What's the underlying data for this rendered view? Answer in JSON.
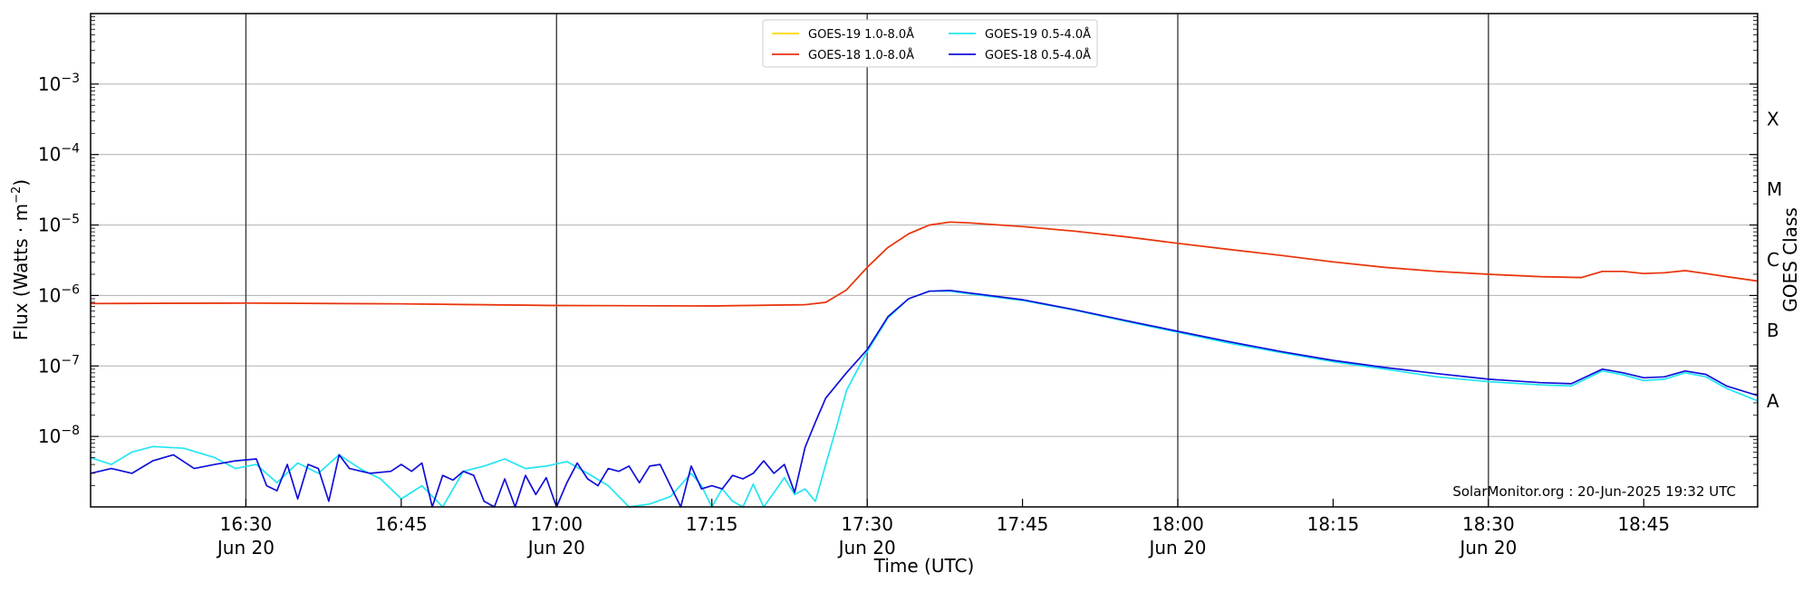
{
  "chart_data": {
    "type": "line",
    "xlabel": "Time (UTC)",
    "ylabel": "Flux (Watts · m",
    "ylabel_sup": "−2",
    "ylabel_close": ")",
    "right_label": "GOES Class",
    "y_scale": "log",
    "ylim": [
      1e-09,
      0.01
    ],
    "xlim": [
      "16:15",
      "18:56"
    ],
    "grid": "horizontal at decades, vertical at half hours",
    "legend_placement": "top-center",
    "y_ticks": [
      {
        "value": 1e-08,
        "base": "10",
        "exp": "−8"
      },
      {
        "value": 1e-07,
        "base": "10",
        "exp": "−7"
      },
      {
        "value": 1e-06,
        "base": "10",
        "exp": "−6"
      },
      {
        "value": 1e-05,
        "base": "10",
        "exp": "−5"
      },
      {
        "value": 0.0001,
        "base": "10",
        "exp": "−4"
      },
      {
        "value": 0.001,
        "base": "10",
        "exp": "−3"
      }
    ],
    "x_ticks": [
      {
        "time": "16:30",
        "label": "16:30",
        "date": "Jun 20"
      },
      {
        "time": "16:45",
        "label": "16:45",
        "date": ""
      },
      {
        "time": "17:00",
        "label": "17:00",
        "date": "Jun 20"
      },
      {
        "time": "17:15",
        "label": "17:15",
        "date": ""
      },
      {
        "time": "17:30",
        "label": "17:30",
        "date": "Jun 20"
      },
      {
        "time": "17:45",
        "label": "17:45",
        "date": ""
      },
      {
        "time": "18:00",
        "label": "18:00",
        "date": "Jun 20"
      },
      {
        "time": "18:15",
        "label": "18:15",
        "date": ""
      },
      {
        "time": "18:30",
        "label": "18:30",
        "date": "Jun 20"
      },
      {
        "time": "18:45",
        "label": "18:45",
        "date": ""
      }
    ],
    "goes_classes": [
      {
        "label": "X",
        "value": 0.00032
      },
      {
        "label": "M",
        "value": 3.2e-05
      },
      {
        "label": "C",
        "value": 3.2e-06
      },
      {
        "label": "B",
        "value": 3.2e-07
      },
      {
        "label": "A",
        "value": 3.2e-08
      }
    ],
    "watermark": "SolarMonitor.org : 20-Jun-2025 19:32 UTC",
    "series": [
      {
        "name": "GOES-19 1.0-8.0Å",
        "color": "#ffd700",
        "legend_order": 0,
        "draw_order": 1,
        "points": [
          [
            "16:15",
            7.7e-07
          ],
          [
            "16:30",
            7.8e-07
          ],
          [
            "16:45",
            7.6e-07
          ],
          [
            "17:00",
            7.2e-07
          ],
          [
            "17:15",
            7.1e-07
          ],
          [
            "17:24",
            7.4e-07
          ],
          [
            "17:26",
            8e-07
          ],
          [
            "17:28",
            1.2e-06
          ],
          [
            "17:30",
            2.5e-06
          ],
          [
            "17:32",
            4.8e-06
          ],
          [
            "17:34",
            7.5e-06
          ],
          [
            "17:36",
            1e-05
          ],
          [
            "17:38",
            1.1e-05
          ],
          [
            "17:40",
            1.07e-05
          ],
          [
            "17:45",
            9.5e-06
          ],
          [
            "17:50",
            8.2e-06
          ],
          [
            "17:55",
            6.8e-06
          ],
          [
            "18:00",
            5.5e-06
          ],
          [
            "18:05",
            4.5e-06
          ],
          [
            "18:10",
            3.7e-06
          ],
          [
            "18:15",
            3e-06
          ],
          [
            "18:20",
            2.5e-06
          ],
          [
            "18:25",
            2.2e-06
          ],
          [
            "18:30",
            2e-06
          ],
          [
            "18:35",
            1.85e-06
          ],
          [
            "18:39",
            1.8e-06
          ],
          [
            "18:41",
            2.2e-06
          ],
          [
            "18:43",
            2.2e-06
          ],
          [
            "18:45",
            2.05e-06
          ],
          [
            "18:47",
            2.1e-06
          ],
          [
            "18:49",
            2.25e-06
          ],
          [
            "18:51",
            2.05e-06
          ],
          [
            "18:53",
            1.85e-06
          ],
          [
            "18:56",
            1.6e-06
          ]
        ]
      },
      {
        "name": "GOES-18 1.0-8.0Å",
        "color": "#e8321a",
        "legend_order": 1,
        "draw_order": 3,
        "points": [
          [
            "16:15",
            7.7e-07
          ],
          [
            "16:30",
            7.8e-07
          ],
          [
            "16:45",
            7.6e-07
          ],
          [
            "17:00",
            7.2e-07
          ],
          [
            "17:15",
            7.1e-07
          ],
          [
            "17:24",
            7.4e-07
          ],
          [
            "17:26",
            8e-07
          ],
          [
            "17:28",
            1.2e-06
          ],
          [
            "17:30",
            2.5e-06
          ],
          [
            "17:32",
            4.8e-06
          ],
          [
            "17:34",
            7.5e-06
          ],
          [
            "17:36",
            1e-05
          ],
          [
            "17:38",
            1.1e-05
          ],
          [
            "17:40",
            1.07e-05
          ],
          [
            "17:45",
            9.5e-06
          ],
          [
            "17:50",
            8.2e-06
          ],
          [
            "17:55",
            6.8e-06
          ],
          [
            "18:00",
            5.5e-06
          ],
          [
            "18:05",
            4.5e-06
          ],
          [
            "18:10",
            3.7e-06
          ],
          [
            "18:15",
            3e-06
          ],
          [
            "18:20",
            2.5e-06
          ],
          [
            "18:25",
            2.2e-06
          ],
          [
            "18:30",
            2e-06
          ],
          [
            "18:35",
            1.85e-06
          ],
          [
            "18:39",
            1.8e-06
          ],
          [
            "18:41",
            2.2e-06
          ],
          [
            "18:43",
            2.2e-06
          ],
          [
            "18:45",
            2.05e-06
          ],
          [
            "18:47",
            2.1e-06
          ],
          [
            "18:49",
            2.25e-06
          ],
          [
            "18:51",
            2.05e-06
          ],
          [
            "18:53",
            1.85e-06
          ],
          [
            "18:56",
            1.6e-06
          ]
        ]
      },
      {
        "name": "GOES-19 0.5-4.0Å",
        "color": "#22e6f2",
        "legend_order": 2,
        "draw_order": 0,
        "points": [
          [
            "16:15",
            5e-09
          ],
          [
            "16:17",
            4e-09
          ],
          [
            "16:19",
            6e-09
          ],
          [
            "16:21",
            7.2e-09
          ],
          [
            "16:24",
            6.8e-09
          ],
          [
            "16:27",
            5e-09
          ],
          [
            "16:29",
            3.5e-09
          ],
          [
            "16:31",
            4e-09
          ],
          [
            "16:33",
            2.2e-09
          ],
          [
            "16:35",
            4.2e-09
          ],
          [
            "16:37",
            3e-09
          ],
          [
            "16:39",
            5.5e-09
          ],
          [
            "16:41",
            3.5e-09
          ],
          [
            "16:43",
            2.5e-09
          ],
          [
            "16:45",
            1.3e-09
          ],
          [
            "16:47",
            2e-09
          ],
          [
            "16:49",
            1e-09
          ],
          [
            "16:51",
            3.2e-09
          ],
          [
            "16:53",
            3.8e-09
          ],
          [
            "16:55",
            4.8e-09
          ],
          [
            "16:57",
            3.5e-09
          ],
          [
            "16:59",
            3.8e-09
          ],
          [
            "17:01",
            4.4e-09
          ],
          [
            "17:03",
            3e-09
          ],
          [
            "17:05",
            2e-09
          ],
          [
            "17:07",
            1e-09
          ],
          [
            "17:09",
            1.1e-09
          ],
          [
            "17:11",
            1.4e-09
          ],
          [
            "17:13",
            3e-09
          ],
          [
            "17:14",
            2e-09
          ],
          [
            "17:15",
            1e-09
          ],
          [
            "17:16",
            1.8e-09
          ],
          [
            "17:17",
            1.2e-09
          ],
          [
            "17:18",
            1e-09
          ],
          [
            "17:19",
            2.1e-09
          ],
          [
            "17:20",
            1e-09
          ],
          [
            "17:21",
            1.6e-09
          ],
          [
            "17:22",
            2.6e-09
          ],
          [
            "17:23",
            1.5e-09
          ],
          [
            "17:24",
            1.8e-09
          ],
          [
            "17:25",
            1.2e-09
          ],
          [
            "17:26",
            4e-09
          ],
          [
            "17:27",
            1.3e-08
          ],
          [
            "17:28",
            4.5e-08
          ],
          [
            "17:30",
            1.6e-07
          ],
          [
            "17:32",
            4.8e-07
          ],
          [
            "17:34",
            9e-07
          ],
          [
            "17:36",
            1.15e-06
          ],
          [
            "17:38",
            1.15e-06
          ],
          [
            "17:40",
            1.05e-06
          ],
          [
            "17:45",
            8.5e-07
          ],
          [
            "17:50",
            6.2e-07
          ],
          [
            "17:55",
            4.3e-07
          ],
          [
            "18:00",
            3e-07
          ],
          [
            "18:05",
            2.1e-07
          ],
          [
            "18:10",
            1.55e-07
          ],
          [
            "18:15",
            1.15e-07
          ],
          [
            "18:20",
            9e-08
          ],
          [
            "18:25",
            7e-08
          ],
          [
            "18:30",
            6e-08
          ],
          [
            "18:35",
            5.4e-08
          ],
          [
            "18:38",
            5.2e-08
          ],
          [
            "18:41",
            8.5e-08
          ],
          [
            "18:43",
            7.5e-08
          ],
          [
            "18:45",
            6.2e-08
          ],
          [
            "18:47",
            6.5e-08
          ],
          [
            "18:49",
            8e-08
          ],
          [
            "18:51",
            7e-08
          ],
          [
            "18:53",
            4.8e-08
          ],
          [
            "18:56",
            3.2e-08
          ]
        ]
      },
      {
        "name": "GOES-18 0.5-4.0Å",
        "color": "#1010d8",
        "legend_order": 3,
        "draw_order": 2,
        "points": [
          [
            "16:15",
            3e-09
          ],
          [
            "16:17",
            3.5e-09
          ],
          [
            "16:19",
            3e-09
          ],
          [
            "16:21",
            4.5e-09
          ],
          [
            "16:23",
            5.5e-09
          ],
          [
            "16:25",
            3.5e-09
          ],
          [
            "16:27",
            4e-09
          ],
          [
            "16:29",
            4.5e-09
          ],
          [
            "16:31",
            4.8e-09
          ],
          [
            "16:32",
            2e-09
          ],
          [
            "16:33",
            1.7e-09
          ],
          [
            "16:34",
            4e-09
          ],
          [
            "16:35",
            1.3e-09
          ],
          [
            "16:36",
            4e-09
          ],
          [
            "16:37",
            3.5e-09
          ],
          [
            "16:38",
            1.2e-09
          ],
          [
            "16:39",
            5.5e-09
          ],
          [
            "16:40",
            3.5e-09
          ],
          [
            "16:42",
            3e-09
          ],
          [
            "16:44",
            3.2e-09
          ],
          [
            "16:45",
            4e-09
          ],
          [
            "16:46",
            3.2e-09
          ],
          [
            "16:47",
            4.2e-09
          ],
          [
            "16:48",
            1e-09
          ],
          [
            "16:49",
            2.8e-09
          ],
          [
            "16:50",
            2.4e-09
          ],
          [
            "16:51",
            3.2e-09
          ],
          [
            "16:52",
            2.8e-09
          ],
          [
            "16:53",
            1.2e-09
          ],
          [
            "16:54",
            1e-09
          ],
          [
            "16:55",
            2.5e-09
          ],
          [
            "16:56",
            1e-09
          ],
          [
            "16:57",
            2.8e-09
          ],
          [
            "16:58",
            1.5e-09
          ],
          [
            "16:59",
            2.6e-09
          ],
          [
            "17:00",
            1e-09
          ],
          [
            "17:01",
            2.2e-09
          ],
          [
            "17:02",
            4.2e-09
          ],
          [
            "17:03",
            2.5e-09
          ],
          [
            "17:04",
            2e-09
          ],
          [
            "17:05",
            3.5e-09
          ],
          [
            "17:06",
            3.2e-09
          ],
          [
            "17:07",
            3.8e-09
          ],
          [
            "17:08",
            2.2e-09
          ],
          [
            "17:09",
            3.8e-09
          ],
          [
            "17:10",
            4e-09
          ],
          [
            "17:11",
            2e-09
          ],
          [
            "17:12",
            1e-09
          ],
          [
            "17:13",
            3.8e-09
          ],
          [
            "17:14",
            1.8e-09
          ],
          [
            "17:15",
            2e-09
          ],
          [
            "17:16",
            1.8e-09
          ],
          [
            "17:17",
            2.8e-09
          ],
          [
            "17:18",
            2.5e-09
          ],
          [
            "17:19",
            3e-09
          ],
          [
            "17:20",
            4.5e-09
          ],
          [
            "17:21",
            3e-09
          ],
          [
            "17:22",
            4e-09
          ],
          [
            "17:23",
            1.6e-09
          ],
          [
            "17:24",
            7e-09
          ],
          [
            "17:25",
            1.6e-08
          ],
          [
            "17:26",
            3.5e-08
          ],
          [
            "17:28",
            8e-08
          ],
          [
            "17:30",
            1.7e-07
          ],
          [
            "17:32",
            5e-07
          ],
          [
            "17:34",
            9e-07
          ],
          [
            "17:36",
            1.15e-06
          ],
          [
            "17:38",
            1.18e-06
          ],
          [
            "17:40",
            1.08e-06
          ],
          [
            "17:45",
            8.7e-07
          ],
          [
            "17:50",
            6.3e-07
          ],
          [
            "17:55",
            4.4e-07
          ],
          [
            "18:00",
            3.1e-07
          ],
          [
            "18:05",
            2.2e-07
          ],
          [
            "18:10",
            1.6e-07
          ],
          [
            "18:15",
            1.2e-07
          ],
          [
            "18:20",
            9.5e-08
          ],
          [
            "18:25",
            7.8e-08
          ],
          [
            "18:30",
            6.5e-08
          ],
          [
            "18:35",
            5.8e-08
          ],
          [
            "18:38",
            5.6e-08
          ],
          [
            "18:41",
            9e-08
          ],
          [
            "18:43",
            8e-08
          ],
          [
            "18:45",
            6.8e-08
          ],
          [
            "18:47",
            7e-08
          ],
          [
            "18:49",
            8.5e-08
          ],
          [
            "18:51",
            7.6e-08
          ],
          [
            "18:53",
            5.2e-08
          ],
          [
            "18:56",
            3.8e-08
          ]
        ]
      }
    ]
  }
}
